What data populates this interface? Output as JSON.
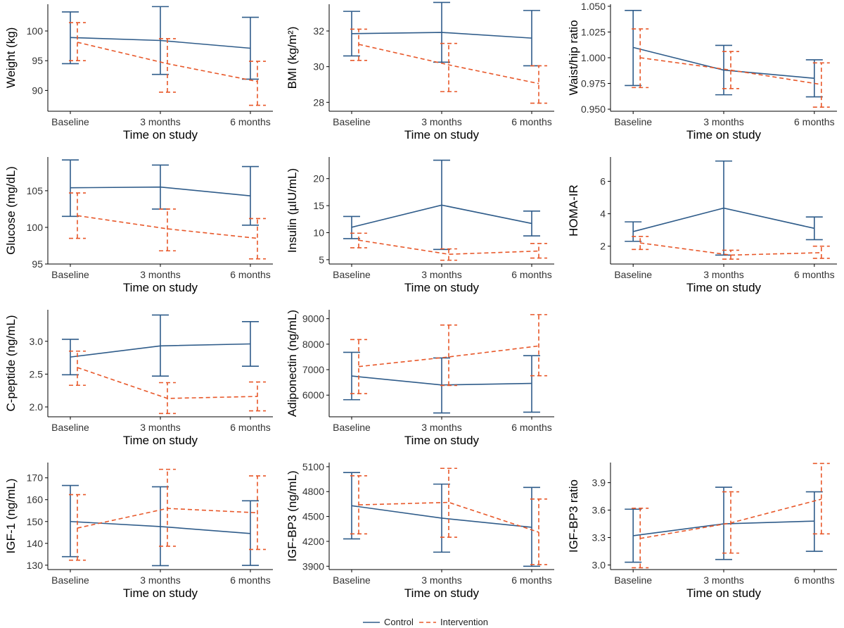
{
  "figure": {
    "x_categories": [
      "Baseline",
      "3 months",
      "6 months"
    ],
    "x_label": "Time on study",
    "colors": {
      "control": "#2f5c8a",
      "intervention": "#e8582a"
    }
  },
  "legend": {
    "control_label": "Control",
    "intervention_label": "Intervention"
  },
  "chart_data": [
    {
      "type": "line",
      "title": "",
      "xlabel": "Time on study",
      "ylabel": "Weight (kg)",
      "categories": [
        "Baseline",
        "3 months",
        "6 months"
      ],
      "ylim": [
        86.5,
        104.5
      ],
      "yticks": [
        90,
        95,
        100
      ],
      "ytick_labels": [
        "90",
        "95",
        "100"
      ],
      "series": [
        {
          "name": "Control",
          "values": [
            98.9,
            98.4,
            97.1
          ],
          "lower": [
            94.5,
            92.7,
            91.9
          ],
          "upper": [
            103.2,
            104.1,
            102.3
          ]
        },
        {
          "name": "Intervention",
          "values": [
            98.1,
            94.5,
            91.5
          ],
          "lower": [
            95.0,
            89.7,
            87.5
          ],
          "upper": [
            101.4,
            98.7,
            94.9
          ]
        }
      ]
    },
    {
      "type": "line",
      "title": "",
      "xlabel": "Time on study",
      "ylabel": "BMI (kg/m²)",
      "categories": [
        "Baseline",
        "3 months",
        "6 months"
      ],
      "ylim": [
        27.5,
        33.5
      ],
      "yticks": [
        28,
        30,
        32
      ],
      "ytick_labels": [
        "28",
        "30",
        "32"
      ],
      "series": [
        {
          "name": "Control",
          "values": [
            31.85,
            31.92,
            31.6
          ],
          "lower": [
            30.6,
            30.25,
            30.05
          ],
          "upper": [
            33.1,
            33.6,
            33.15
          ]
        },
        {
          "name": "Intervention",
          "values": [
            31.25,
            30.1,
            29.05
          ],
          "lower": [
            30.35,
            28.6,
            27.95
          ],
          "upper": [
            32.1,
            31.3,
            30.05
          ]
        }
      ]
    },
    {
      "type": "line",
      "title": "",
      "xlabel": "Time on study",
      "ylabel": "Waist/hip ratio",
      "categories": [
        "Baseline",
        "3 months",
        "6 months"
      ],
      "ylim": [
        0.948,
        1.052
      ],
      "yticks": [
        0.95,
        0.975,
        1.0,
        1.025,
        1.05
      ],
      "ytick_labels": [
        "0.950",
        "0.975",
        "1.000",
        "1.025",
        "1.050"
      ],
      "series": [
        {
          "name": "Control",
          "values": [
            1.01,
            0.988,
            0.98
          ],
          "lower": [
            0.973,
            0.964,
            0.962
          ],
          "upper": [
            1.046,
            1.012,
            0.998
          ]
        },
        {
          "name": "Intervention",
          "values": [
            1.0,
            0.988,
            0.974
          ],
          "lower": [
            0.971,
            0.97,
            0.952
          ],
          "upper": [
            1.028,
            1.006,
            0.995
          ]
        }
      ]
    },
    {
      "type": "line",
      "title": "",
      "xlabel": "Time on study",
      "ylabel": "Glucose (mg/dL)",
      "categories": [
        "Baseline",
        "3 months",
        "6 months"
      ],
      "ylim": [
        95.0,
        109.6
      ],
      "yticks": [
        95,
        100,
        105
      ],
      "ytick_labels": [
        "95",
        "100",
        "105"
      ],
      "series": [
        {
          "name": "Control",
          "values": [
            105.4,
            105.5,
            104.3
          ],
          "lower": [
            101.5,
            102.5,
            100.3
          ],
          "upper": [
            109.2,
            108.5,
            108.3
          ]
        },
        {
          "name": "Intervention",
          "values": [
            101.6,
            99.8,
            98.5
          ],
          "lower": [
            98.5,
            96.8,
            95.7
          ],
          "upper": [
            104.7,
            102.5,
            101.2
          ]
        }
      ]
    },
    {
      "type": "line",
      "title": "",
      "xlabel": "Time on study",
      "ylabel": "Insulin (µIU/mL)",
      "categories": [
        "Baseline",
        "3 months",
        "6 months"
      ],
      "ylim": [
        4.2,
        24.0
      ],
      "yticks": [
        5,
        10,
        15,
        20
      ],
      "ytick_labels": [
        "5",
        "10",
        "15",
        "20"
      ],
      "series": [
        {
          "name": "Control",
          "values": [
            11.0,
            15.1,
            11.7
          ],
          "lower": [
            8.9,
            6.9,
            9.4
          ],
          "upper": [
            13.0,
            23.4,
            14.0
          ]
        },
        {
          "name": "Intervention",
          "values": [
            8.6,
            6.0,
            6.6
          ],
          "lower": [
            7.2,
            4.9,
            5.3
          ],
          "upper": [
            9.9,
            7.0,
            8.0
          ]
        }
      ]
    },
    {
      "type": "line",
      "title": "",
      "xlabel": "Time on study",
      "ylabel": "HOMA-IR",
      "categories": [
        "Baseline",
        "3 months",
        "6 months"
      ],
      "ylim": [
        0.9,
        7.5
      ],
      "yticks": [
        2,
        4,
        6
      ],
      "ytick_labels": [
        "2",
        "4",
        "6"
      ],
      "series": [
        {
          "name": "Control",
          "values": [
            2.9,
            4.35,
            3.1
          ],
          "lower": [
            2.3,
            1.45,
            2.4
          ],
          "upper": [
            3.5,
            7.25,
            3.8
          ]
        },
        {
          "name": "Intervention",
          "values": [
            2.2,
            1.45,
            1.6
          ],
          "lower": [
            1.8,
            1.2,
            1.25
          ],
          "upper": [
            2.6,
            1.75,
            2.0
          ]
        }
      ]
    },
    {
      "type": "line",
      "title": "",
      "xlabel": "Time on study",
      "ylabel": "C-peptide (ng/mL)",
      "categories": [
        "Baseline",
        "3 months",
        "6 months"
      ],
      "ylim": [
        1.85,
        3.48
      ],
      "yticks": [
        2.0,
        2.5,
        3.0
      ],
      "ytick_labels": [
        "2.0",
        "2.5",
        "3.0"
      ],
      "series": [
        {
          "name": "Control",
          "values": [
            2.76,
            2.93,
            2.96
          ],
          "lower": [
            2.49,
            2.47,
            2.62
          ],
          "upper": [
            3.03,
            3.4,
            3.3
          ]
        },
        {
          "name": "Intervention",
          "values": [
            2.6,
            2.13,
            2.16
          ],
          "lower": [
            2.33,
            1.9,
            1.94
          ],
          "upper": [
            2.85,
            2.37,
            2.38
          ]
        }
      ]
    },
    {
      "type": "line",
      "title": "",
      "xlabel": "Time on study",
      "ylabel": "Adiponectin (ng/mL)",
      "categories": [
        "Baseline",
        "3 months",
        "6 months"
      ],
      "ylim": [
        5150,
        9350
      ],
      "yticks": [
        6000,
        7000,
        8000,
        9000
      ],
      "ytick_labels": [
        "6000",
        "7000",
        "8000",
        "9000"
      ],
      "series": [
        {
          "name": "Control",
          "values": [
            6750,
            6400,
            6460
          ],
          "lower": [
            5820,
            5300,
            5330
          ],
          "upper": [
            7680,
            7460,
            7550
          ]
        },
        {
          "name": "Intervention",
          "values": [
            7120,
            7500,
            7930
          ],
          "lower": [
            6060,
            6380,
            6760
          ],
          "upper": [
            8180,
            8750,
            9160
          ]
        }
      ]
    },
    {
      "type": "line",
      "title": "",
      "xlabel": "Time on study",
      "ylabel": "IGF-1 (ng/mL)",
      "categories": [
        "Baseline",
        "3 months",
        "6 months"
      ],
      "ylim": [
        128,
        177
      ],
      "yticks": [
        130,
        140,
        150,
        160,
        170
      ],
      "ytick_labels": [
        "130",
        "140",
        "150",
        "160",
        "170"
      ],
      "series": [
        {
          "name": "Control",
          "values": [
            150.0,
            147.7,
            144.5
          ],
          "lower": [
            133.9,
            129.8,
            129.9
          ],
          "upper": [
            166.5,
            165.9,
            159.5
          ]
        },
        {
          "name": "Intervention",
          "values": [
            147.0,
            156.0,
            154.0
          ],
          "lower": [
            132.3,
            138.7,
            137.2
          ],
          "upper": [
            162.3,
            173.9,
            170.9
          ]
        }
      ]
    },
    {
      "type": "line",
      "title": "",
      "xlabel": "Time on study",
      "ylabel": "IGF-BP3 (ng/mL)",
      "categories": [
        "Baseline",
        "3 months",
        "6 months"
      ],
      "ylim": [
        3860,
        5150
      ],
      "yticks": [
        3900,
        4200,
        4500,
        4800,
        5100
      ],
      "ytick_labels": [
        "3900",
        "4200",
        "4500",
        "4800",
        "5100"
      ],
      "series": [
        {
          "name": "Control",
          "values": [
            4630,
            4480,
            4370
          ],
          "lower": [
            4230,
            4070,
            3900
          ],
          "upper": [
            5030,
            4890,
            4850
          ]
        },
        {
          "name": "Intervention",
          "values": [
            4640,
            4670,
            4310
          ],
          "lower": [
            4290,
            4250,
            3920
          ],
          "upper": [
            4990,
            5080,
            4710
          ]
        }
      ]
    },
    {
      "type": "line",
      "title": "",
      "xlabel": "Time on study",
      "ylabel": "IGF-BP3 ratio",
      "categories": [
        "Baseline",
        "3 months",
        "6 months"
      ],
      "ylim": [
        2.95,
        4.12
      ],
      "yticks": [
        3.0,
        3.3,
        3.6,
        3.9
      ],
      "ytick_labels": [
        "3.0",
        "3.3",
        "3.6",
        "3.9"
      ],
      "series": [
        {
          "name": "Control",
          "values": [
            3.32,
            3.45,
            3.48
          ],
          "lower": [
            3.03,
            3.06,
            3.15
          ],
          "upper": [
            3.61,
            3.85,
            3.8
          ]
        },
        {
          "name": "Intervention",
          "values": [
            3.29,
            3.46,
            3.72
          ],
          "lower": [
            2.97,
            3.13,
            3.34
          ],
          "upper": [
            3.62,
            3.8,
            4.11
          ]
        }
      ]
    }
  ]
}
